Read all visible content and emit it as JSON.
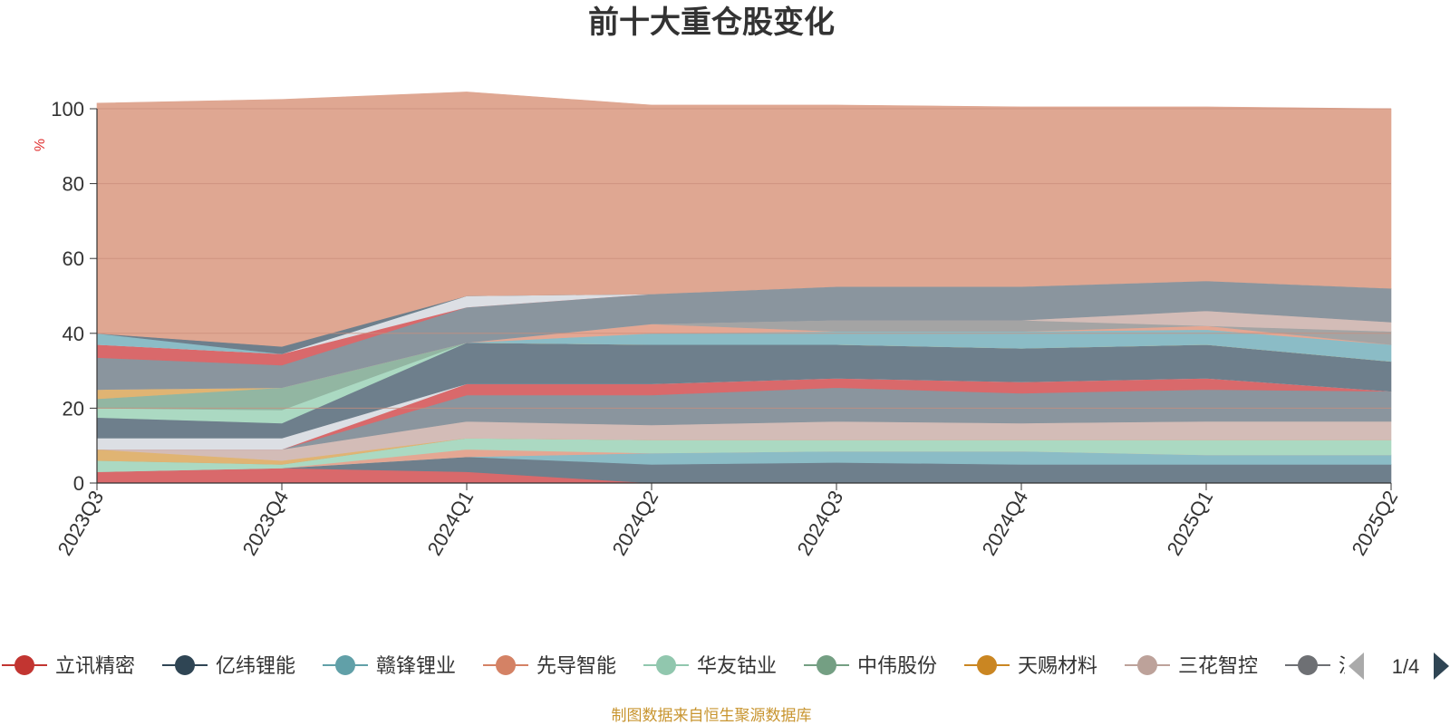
{
  "chart_data": {
    "type": "area",
    "stacked": true,
    "title": "前十大重仓股变化",
    "ylabel": "%",
    "ylim": [
      0,
      100
    ],
    "yticks": [
      0,
      20,
      40,
      60,
      80,
      100
    ],
    "grid": true,
    "categories": [
      "2023Q3",
      "2023Q4",
      "2024Q1",
      "2024Q2",
      "2024Q3",
      "2024Q4",
      "2025Q1",
      "2025Q2"
    ],
    "series": [
      {
        "name": "立讯精密",
        "color": "#d9696b",
        "values": [
          3,
          4,
          3,
          0,
          0,
          0,
          0,
          0
        ]
      },
      {
        "name": "亿纬锂能",
        "color": "#6e7f8c",
        "values": [
          0,
          0,
          4,
          5,
          5.5,
          5,
          5,
          5
        ]
      },
      {
        "name": "赣锋锂业",
        "color": "#8bbcc6",
        "values": [
          0,
          0,
          0,
          3,
          3,
          3.5,
          2.5,
          2.5
        ]
      },
      {
        "name": "先导智能",
        "color": "#e4a793",
        "values": [
          0,
          0,
          2,
          0,
          0,
          0,
          0,
          0
        ]
      },
      {
        "name": "华友钴业",
        "color": "#abd9c2",
        "values": [
          3,
          1,
          3,
          3.5,
          3,
          3,
          4,
          4
        ]
      },
      {
        "name": "中伟股份",
        "color": "#92b6a2",
        "values": [
          0,
          0,
          0,
          0,
          0,
          0,
          0,
          0
        ]
      },
      {
        "name": "天赐材料",
        "color": "#e0b473",
        "values": [
          3,
          1,
          0,
          0,
          0,
          0,
          0,
          0
        ]
      },
      {
        "name": "三花智控",
        "color": "#d3bcb7",
        "values": [
          0,
          3,
          4.5,
          4,
          5,
          4.5,
          5,
          5
        ]
      },
      {
        "name": "",
        "color": "#8a959e",
        "values": [
          0,
          0,
          7,
          8,
          9,
          8,
          8.5,
          8
        ]
      },
      {
        "name": "",
        "color": "#d9696b",
        "values": [
          0,
          0,
          3,
          3,
          2.5,
          3,
          3,
          0
        ]
      },
      {
        "name": "",
        "color": "#dcdfe4",
        "values": [
          3,
          3,
          0,
          0,
          0,
          0,
          0,
          0
        ]
      },
      {
        "name": "",
        "color": "#6e7f8c",
        "values": [
          5.5,
          4,
          11,
          10.5,
          9,
          9,
          9,
          8
        ]
      },
      {
        "name": "",
        "color": "#abd9c2",
        "values": [
          2.5,
          3.5,
          0,
          0,
          0,
          0,
          0,
          0
        ]
      },
      {
        "name": "",
        "color": "#92b6a2",
        "values": [
          2.5,
          6,
          0,
          0,
          0,
          0,
          0,
          0
        ]
      },
      {
        "name": "",
        "color": "#e0b473",
        "values": [
          2.5,
          0,
          0,
          0,
          0,
          0,
          0,
          0
        ]
      },
      {
        "name": "",
        "color": "#8bbcc6",
        "values": [
          0,
          0,
          0,
          3,
          3.5,
          4.5,
          4,
          4.5
        ]
      },
      {
        "name": "",
        "color": "#e4a793",
        "values": [
          0,
          0,
          0,
          2.5,
          0,
          0,
          1,
          0
        ]
      },
      {
        "name": "",
        "color": "#a4a4a4",
        "values": [
          0,
          0,
          0,
          0,
          3,
          3,
          0,
          3.5
        ]
      },
      {
        "name": "",
        "color": "#d3bcb7",
        "values": [
          0,
          0,
          0,
          0,
          0,
          0,
          4,
          2.5
        ]
      },
      {
        "name": "",
        "color": "#8a959e",
        "values": [
          8.5,
          6,
          9.5,
          8,
          9,
          9,
          8,
          9
        ]
      },
      {
        "name": "",
        "color": "#d9696b",
        "values": [
          3.5,
          3,
          0,
          0,
          0,
          0,
          0,
          0
        ]
      },
      {
        "name": "",
        "color": "#dcdfe4",
        "values": [
          0,
          0,
          3,
          0,
          0,
          0,
          0,
          0
        ]
      },
      {
        "name": "",
        "color": "#8bbcc6",
        "values": [
          3,
          0,
          0,
          0,
          0,
          0,
          0,
          0
        ]
      },
      {
        "name": "",
        "color": "#6e7f8c",
        "values": [
          0,
          2,
          0,
          0,
          0,
          0,
          0,
          0
        ]
      },
      {
        "name": "",
        "color": "#dfa792",
        "values": [
          61.5,
          66,
          54.5,
          50.5,
          48.5,
          48,
          46.5,
          48
        ]
      }
    ]
  },
  "legend": {
    "items": [
      {
        "label": "立讯精密",
        "color": "#c23531"
      },
      {
        "label": "亿纬锂能",
        "color": "#2f4554"
      },
      {
        "label": "赣锋锂业",
        "color": "#61a0a8"
      },
      {
        "label": "先导智能",
        "color": "#d48265"
      },
      {
        "label": "华友钴业",
        "color": "#91c7ae"
      },
      {
        "label": "中伟股份",
        "color": "#749f83"
      },
      {
        "label": "天赐材料",
        "color": "#ca8622"
      },
      {
        "label": "三花智控",
        "color": "#bda29a"
      },
      {
        "label": "泸",
        "color": "#6e7074"
      }
    ],
    "page_label": "1/4"
  },
  "source_note": "制图数据来自恒生聚源数据库",
  "colors": {
    "axis": "#333333",
    "grid": "#c98e7b",
    "source": "#c89530",
    "pager_active": "#2f4554",
    "pager_inactive": "#aaaaaa"
  }
}
